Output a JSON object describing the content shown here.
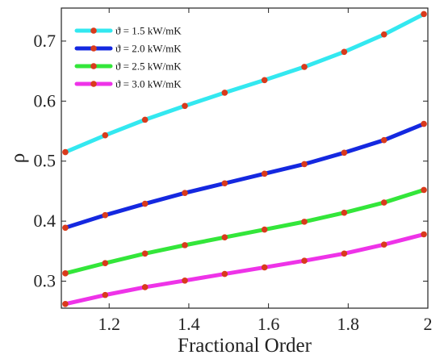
{
  "chart_data": {
    "type": "line",
    "title": "",
    "xlabel": "Fractional Order",
    "ylabel": "ρ",
    "xlim": [
      1.08,
      2.0
    ],
    "ylim": [
      0.255,
      0.755
    ],
    "xticks": [
      1.2,
      1.4,
      1.6,
      1.8,
      2.0
    ],
    "xtick_labels": [
      "1.2",
      "1.4",
      "1.6",
      "1.8",
      "2"
    ],
    "yticks": [
      0.3,
      0.4,
      0.5,
      0.6,
      0.7
    ],
    "ytick_labels": [
      "0.3",
      "0.4",
      "0.5",
      "0.6",
      "0.7"
    ],
    "grid": false,
    "legend_position": "top-left",
    "x": [
      1.09,
      1.19,
      1.29,
      1.39,
      1.49,
      1.59,
      1.69,
      1.79,
      1.89,
      1.99
    ],
    "marker_color": "#d93a1c",
    "series": [
      {
        "name": "ϑ = 1.5 kW/mK",
        "color": "#33e8f0",
        "values": [
          0.515,
          0.543,
          0.569,
          0.592,
          0.614,
          0.635,
          0.657,
          0.682,
          0.711,
          0.745
        ]
      },
      {
        "name": "ϑ = 2.0 kW/mK",
        "color": "#1428e0",
        "values": [
          0.389,
          0.41,
          0.429,
          0.447,
          0.463,
          0.479,
          0.495,
          0.514,
          0.535,
          0.562
        ]
      },
      {
        "name": "ϑ = 2.5 kW/mK",
        "color": "#33e63a",
        "values": [
          0.313,
          0.33,
          0.346,
          0.36,
          0.373,
          0.386,
          0.399,
          0.414,
          0.431,
          0.452
        ]
      },
      {
        "name": "ϑ = 3.0 kW/mK",
        "color": "#ee33e8",
        "values": [
          0.262,
          0.277,
          0.29,
          0.301,
          0.312,
          0.323,
          0.334,
          0.346,
          0.361,
          0.378
        ]
      }
    ]
  }
}
